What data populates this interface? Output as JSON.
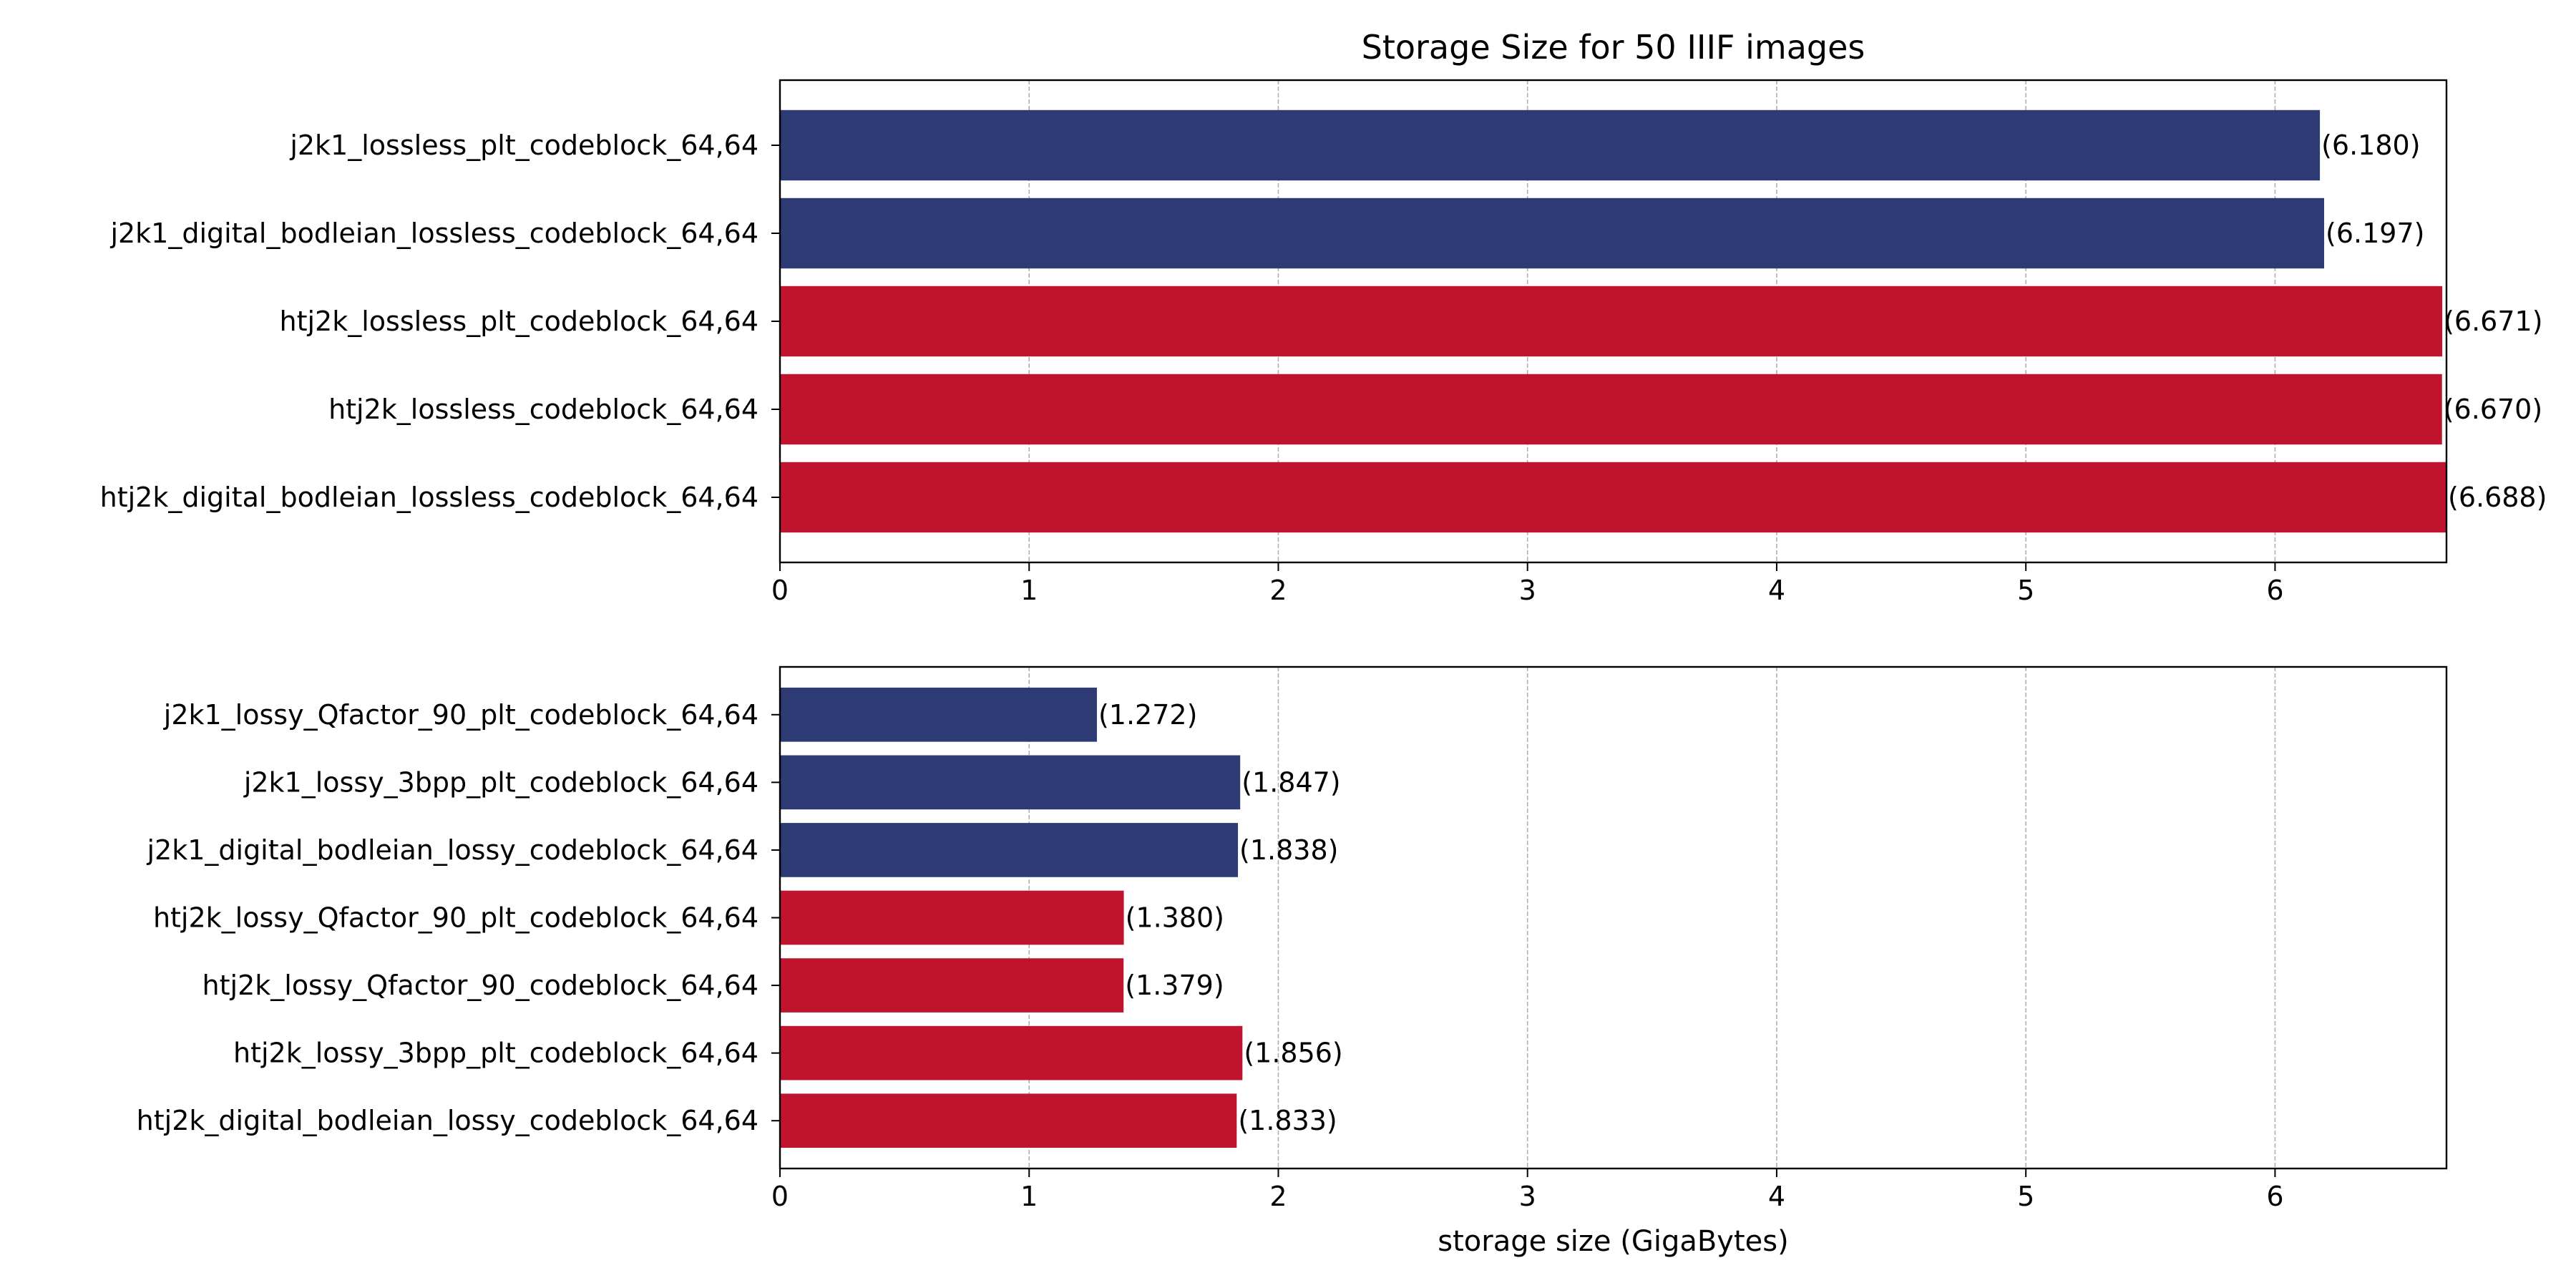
{
  "chart_data": [
    {
      "type": "bar",
      "orientation": "horizontal",
      "title": "Storage Size for 50 IIIF images",
      "xlabel": "",
      "ylabel": "",
      "xlim": [
        0,
        6.688
      ],
      "xticks": [
        0,
        1,
        2,
        3,
        4,
        5,
        6
      ],
      "grid": "x-dashed",
      "legend": "none",
      "categories": [
        "j2k1_lossless_plt_codeblock_64,64",
        "j2k1_digital_bodleian_lossless_codeblock_64,64",
        "htj2k_lossless_plt_codeblock_64,64",
        "htj2k_lossless_codeblock_64,64",
        "htj2k_digital_bodleian_lossless_codeblock_64,64"
      ],
      "values": [
        6.18,
        6.197,
        6.671,
        6.67,
        6.688
      ],
      "value_labels": [
        "(6.180)",
        "(6.197)",
        "(6.671)",
        "(6.670)",
        "(6.688)"
      ],
      "bar_colors": [
        "#2e3a74",
        "#2e3a74",
        "#c0132e",
        "#c0132e",
        "#c0132e"
      ]
    },
    {
      "type": "bar",
      "orientation": "horizontal",
      "title": "",
      "xlabel": "storage size (GigaBytes)",
      "ylabel": "",
      "xlim": [
        0,
        6.688
      ],
      "xticks": [
        0,
        1,
        2,
        3,
        4,
        5,
        6
      ],
      "grid": "x-dashed",
      "legend": "none",
      "categories": [
        "j2k1_lossy_Qfactor_90_plt_codeblock_64,64",
        "j2k1_lossy_3bpp_plt_codeblock_64,64",
        "j2k1_digital_bodleian_lossy_codeblock_64,64",
        "htj2k_lossy_Qfactor_90_plt_codeblock_64,64",
        "htj2k_lossy_Qfactor_90_codeblock_64,64",
        "htj2k_lossy_3bpp_plt_codeblock_64,64",
        "htj2k_digital_bodleian_lossy_codeblock_64,64"
      ],
      "values": [
        1.272,
        1.847,
        1.838,
        1.38,
        1.379,
        1.856,
        1.833
      ],
      "value_labels": [
        "(1.272)",
        "(1.847)",
        "(1.838)",
        "(1.380)",
        "(1.379)",
        "(1.856)",
        "(1.833)"
      ],
      "bar_colors": [
        "#2e3a74",
        "#2e3a74",
        "#2e3a74",
        "#c0132e",
        "#c0132e",
        "#c0132e",
        "#c0132e"
      ]
    }
  ]
}
